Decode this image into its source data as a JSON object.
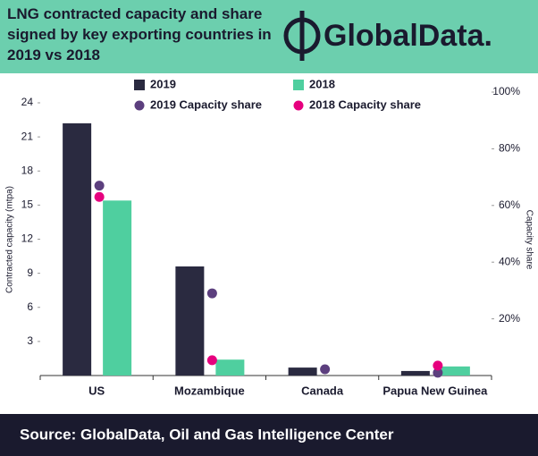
{
  "chart_data": {
    "type": "bar",
    "title": "LNG contracted capacity and share signed by key exporting countries in 2019 vs 2018",
    "logo": "GlobalData.",
    "source": "Source:  GlobalData, Oil and Gas Intelligence Center",
    "y_label": "Contracted capacity (mtpa)",
    "y2_label": "Capacity share",
    "categories": [
      "US",
      "Mozambique",
      "Canada",
      "Papua New Guinea"
    ],
    "series": [
      {
        "name": "2019",
        "type": "bar",
        "color": "#2a2a40",
        "values": [
          22.2,
          9.6,
          0.7,
          0.4
        ]
      },
      {
        "name": "2018",
        "type": "bar",
        "color": "#4fcf9f",
        "values": [
          15.4,
          1.4,
          null,
          0.8
        ]
      },
      {
        "name": "2019 Capacity share",
        "type": "scatter",
        "axis": "y2",
        "color": "#5c3f7e",
        "values": [
          67,
          29,
          2.2,
          1
        ]
      },
      {
        "name": "2018 Capacity share",
        "type": "scatter",
        "axis": "y2",
        "color": "#e6007e",
        "values": [
          63,
          5.4,
          null,
          3.5
        ]
      }
    ],
    "ylim": [
      0,
      24
    ],
    "yticks": [
      3,
      6,
      9,
      12,
      15,
      18,
      21,
      24
    ],
    "y2lim": [
      0,
      100
    ],
    "y2ticks": [
      {
        "value": 20,
        "label": "20%"
      },
      {
        "value": 40,
        "label": "40%"
      },
      {
        "value": 60,
        "label": "60%"
      },
      {
        "value": 80,
        "label": "80%"
      },
      {
        "value": 100,
        "label": "100%"
      }
    ],
    "grid": false
  }
}
